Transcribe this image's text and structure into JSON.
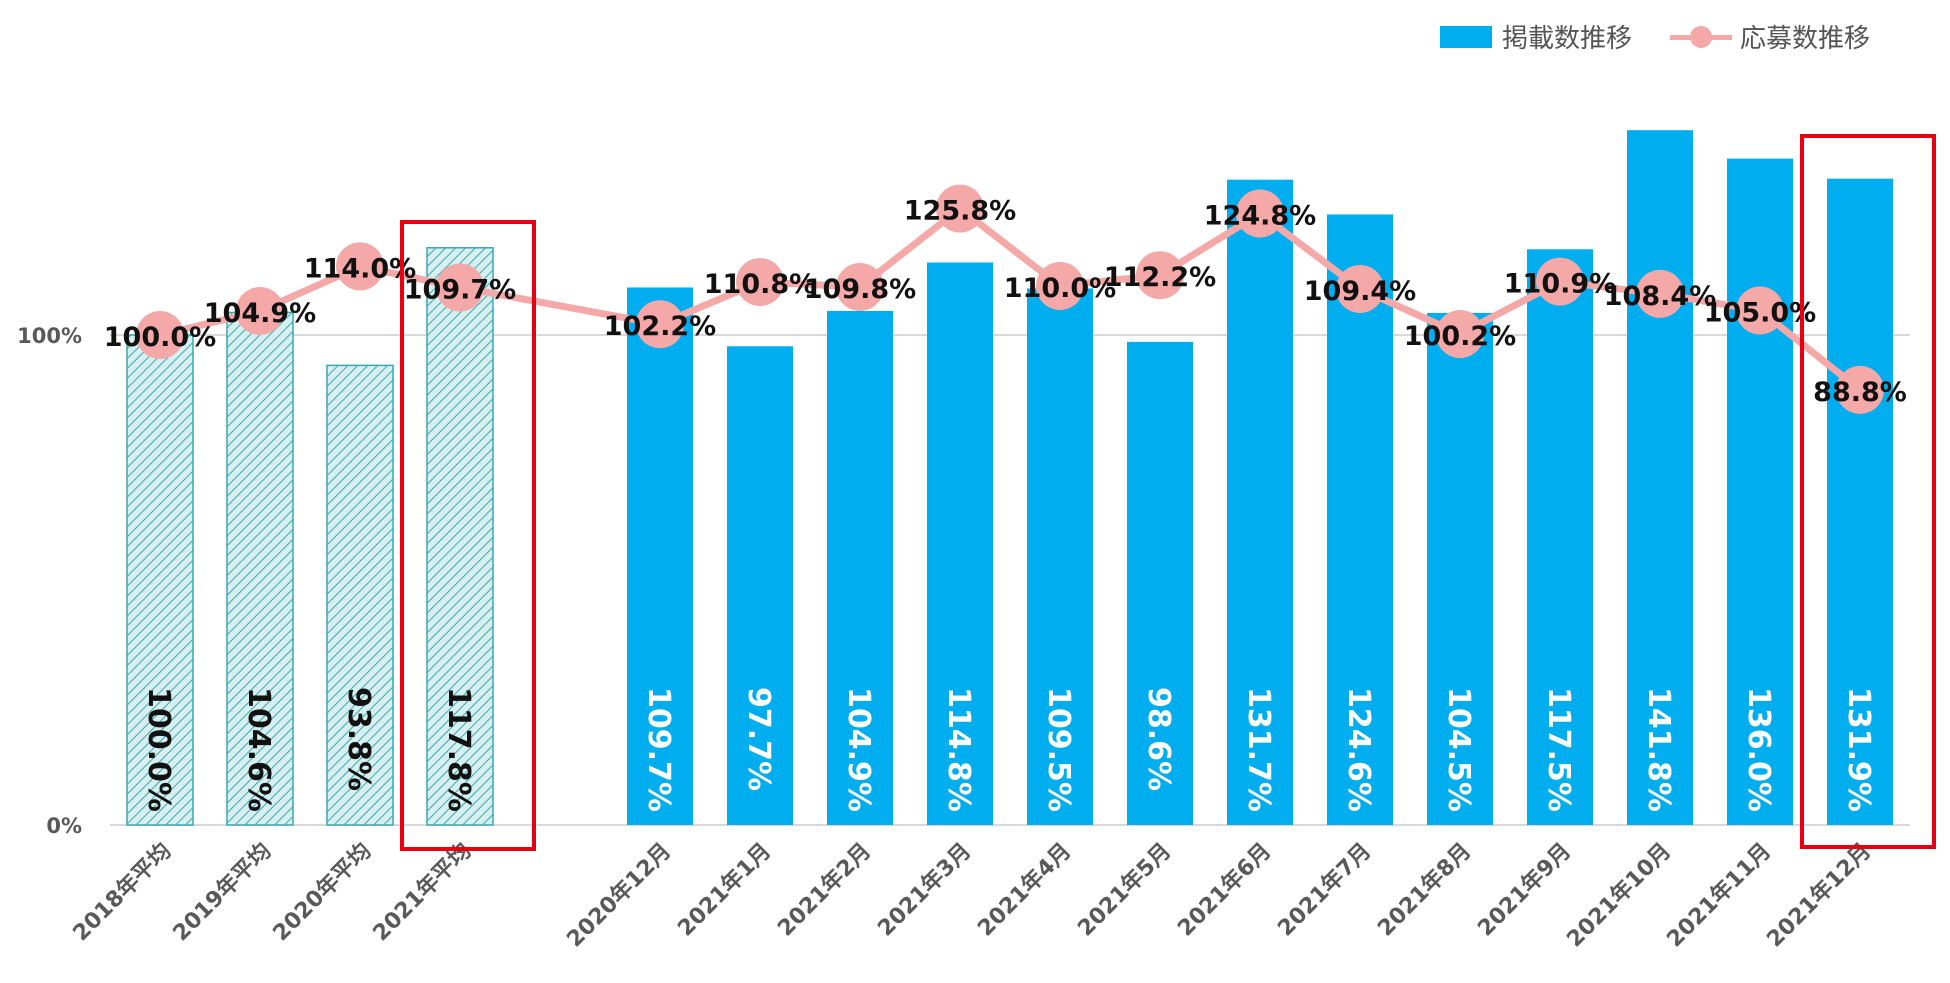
{
  "legend": {
    "bar_label": "掲載数推移",
    "line_label": "応募数推移"
  },
  "colors": {
    "bar": "#00aeef",
    "bar_hatch_fill": "#d8efef",
    "bar_hatch_line": "#3aa7b5",
    "line": "#f4a8a8",
    "grid": "#d9d9d9",
    "highlight_box": "#e60012",
    "label_dark": "#111111",
    "label_light": "#ffffff",
    "axis_text": "#595959"
  },
  "chart_data": {
    "type": "bar",
    "ylim": [
      0,
      150
    ],
    "y_ticks": [
      {
        "value": 0,
        "label": "0%"
      },
      {
        "value": 100,
        "label": "100%"
      }
    ],
    "grid": true,
    "legend_position": "top-right",
    "categories": [
      "2018年平均",
      "2019年平均",
      "2020年平均",
      "2021年平均",
      "2020年12月",
      "2021年1月",
      "2021年2月",
      "2021年3月",
      "2021年4月",
      "2021年5月",
      "2021年6月",
      "2021年7月",
      "2021年8月",
      "2021年9月",
      "2021年10月",
      "2021年11月",
      "2021年12月"
    ],
    "hatched_categories": [
      "2018年平均",
      "2019年平均",
      "2020年平均",
      "2021年平均"
    ],
    "highlighted_categories": [
      "2021年平均",
      "2021年12月"
    ],
    "series": [
      {
        "name": "掲載数推移",
        "type": "bar",
        "values": [
          100.0,
          104.6,
          93.8,
          117.8,
          109.7,
          97.7,
          104.9,
          114.8,
          109.5,
          98.6,
          131.7,
          124.6,
          104.5,
          117.5,
          141.8,
          136.0,
          131.9
        ],
        "labels": [
          "100.0%",
          "104.6%",
          "93.8%",
          "117.8%",
          "109.7%",
          "97.7%",
          "104.9%",
          "114.8%",
          "109.5%",
          "98.6%",
          "131.7%",
          "124.6%",
          "104.5%",
          "117.5%",
          "141.8%",
          "136.0%",
          "131.9%"
        ]
      },
      {
        "name": "応募数推移",
        "type": "line",
        "values": [
          100.0,
          104.9,
          114.0,
          109.7,
          102.2,
          110.8,
          109.8,
          125.8,
          110.0,
          112.2,
          124.8,
          109.4,
          100.2,
          110.9,
          108.4,
          105.0,
          88.8
        ],
        "labels": [
          "100.0%",
          "104.9%",
          "114.0%",
          "109.7%",
          "102.2%",
          "110.8%",
          "109.8%",
          "125.8%",
          "110.0%",
          "112.2%",
          "124.8%",
          "109.4%",
          "100.2%",
          "110.9%",
          "108.4%",
          "105.0%",
          "88.8%"
        ]
      }
    ]
  }
}
